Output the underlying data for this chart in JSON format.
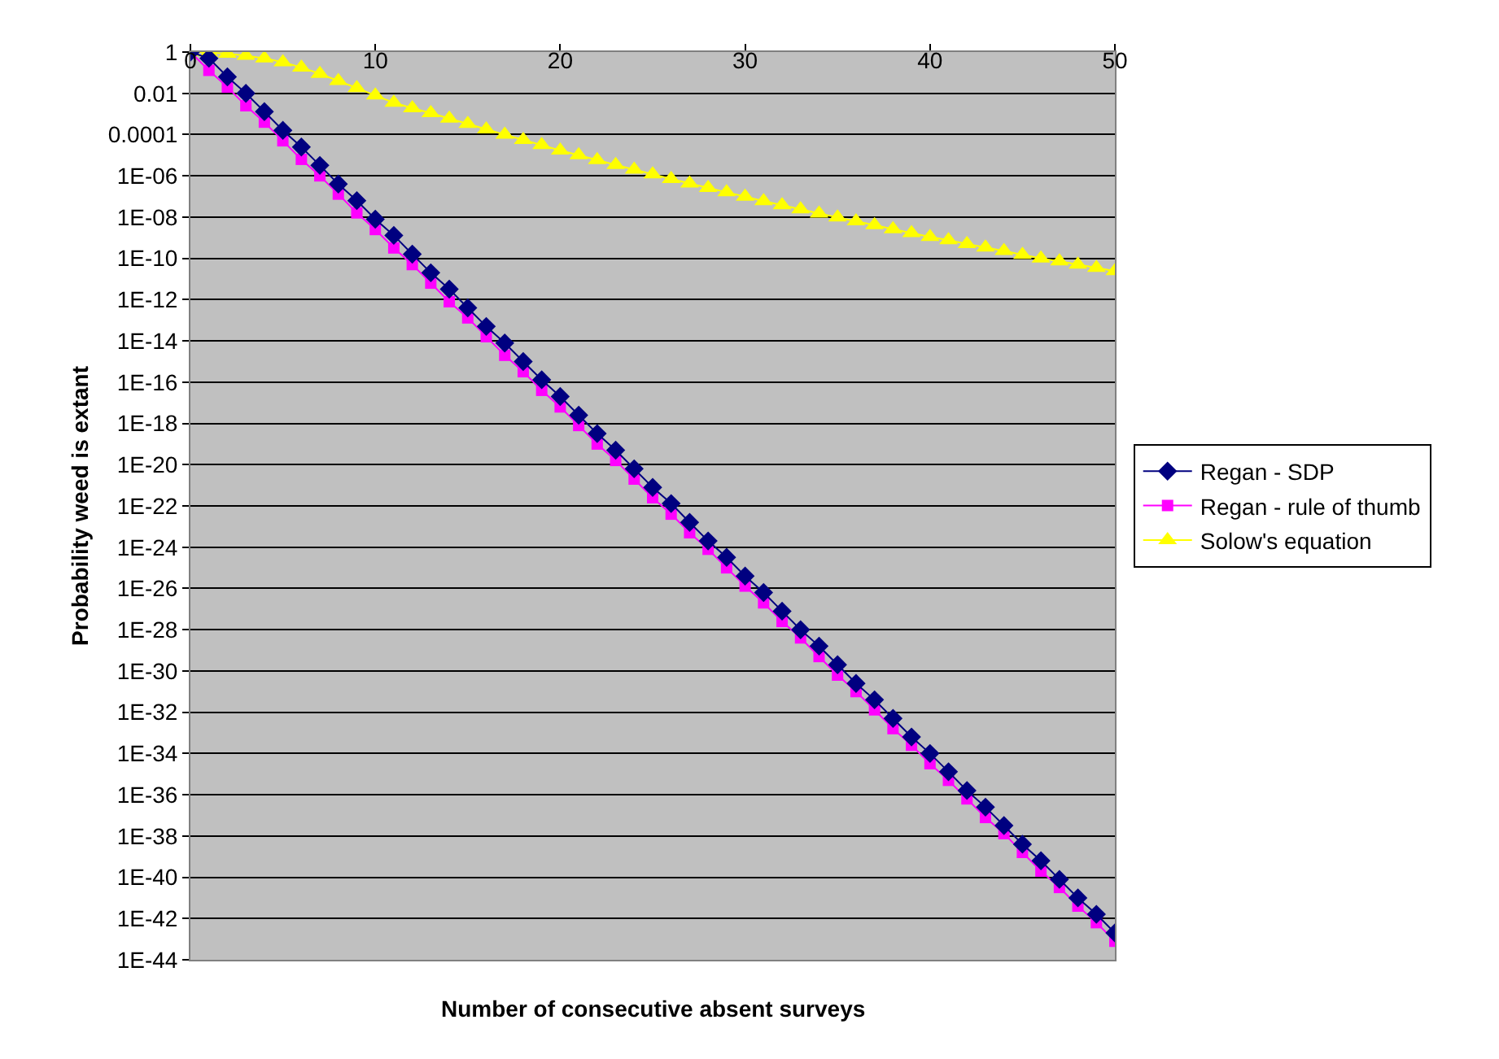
{
  "chart_data": {
    "type": "line",
    "xlabel": "Number of consecutive absent surveys",
    "ylabel": "Probability weed is extant",
    "x": [
      0,
      1,
      2,
      3,
      4,
      5,
      6,
      7,
      8,
      9,
      10,
      11,
      12,
      13,
      14,
      15,
      16,
      17,
      18,
      19,
      20,
      21,
      22,
      23,
      24,
      25,
      26,
      27,
      28,
      29,
      30,
      31,
      32,
      33,
      34,
      35,
      36,
      37,
      38,
      39,
      40,
      41,
      42,
      43,
      44,
      45,
      46,
      47,
      48,
      49,
      50
    ],
    "series": [
      {
        "name": "Regan - SDP",
        "color": "#000080",
        "marker": "diamond",
        "values": [
          1,
          0.5,
          0.063,
          0.01,
          0.0013,
          0.00016,
          2.5e-05,
          3.2e-06,
          4e-07,
          6.3e-08,
          7.9e-09,
          1.3e-09,
          1.6e-10,
          2e-11,
          3.2e-12,
          4e-13,
          5e-14,
          7.9e-15,
          1e-15,
          1.3e-16,
          2e-17,
          2.5e-18,
          3.2e-19,
          5e-20,
          6.3e-21,
          7.9e-22,
          1.3e-22,
          1.6e-23,
          2e-24,
          3.2e-25,
          4e-26,
          6.3e-27,
          7.9e-28,
          1e-28,
          1.6e-29,
          2e-30,
          2.5e-31,
          4e-32,
          5e-33,
          6.3e-34,
          1e-34,
          1.3e-35,
          1.6e-36,
          2.5e-37,
          3.2e-38,
          4e-39,
          6.3e-40,
          7.9e-41,
          1e-41,
          1.6e-42,
          2e-43
        ]
      },
      {
        "name": "Regan - rule of thumb",
        "color": "#ff00ff",
        "marker": "square",
        "values": [
          1,
          0.13,
          0.02,
          0.0025,
          0.0004,
          5e-05,
          6.3e-06,
          1e-06,
          1.3e-07,
          1.6e-08,
          2.5e-09,
          3.2e-10,
          5e-11,
          6.3e-12,
          7.9e-13,
          1.3e-13,
          1.6e-14,
          2e-15,
          3.2e-16,
          4e-17,
          6.3e-18,
          7.9e-19,
          1e-19,
          1.6e-20,
          2e-21,
          2.5e-22,
          4e-23,
          5e-24,
          7.9e-25,
          1e-25,
          1.3e-26,
          2e-27,
          2.5e-28,
          4e-29,
          5e-30,
          6.3e-31,
          1e-31,
          1.3e-32,
          1.6e-33,
          2.5e-34,
          3.2e-35,
          5e-36,
          6.3e-37,
          7.9e-38,
          1.3e-38,
          1.6e-39,
          2e-40,
          3.2e-41,
          4e-42,
          6.3e-43,
          7.9e-44
        ]
      },
      {
        "name": "Solow's equation",
        "color": "#ffff00",
        "marker": "triangle",
        "values": [
          1,
          0.95,
          0.83,
          0.66,
          0.5,
          0.32,
          0.18,
          0.089,
          0.04,
          0.018,
          0.0079,
          0.0035,
          0.0019,
          0.0011,
          0.0006,
          0.00033,
          0.00018,
          0.0001,
          5.5e-05,
          3.1e-05,
          1.7e-05,
          1e-05,
          5.8e-06,
          3.4e-06,
          2e-06,
          1.2e-06,
          7.1e-07,
          4.3e-07,
          2.6e-07,
          1.6e-07,
          9.8e-08,
          6e-08,
          3.8e-08,
          2.4e-08,
          1.5e-08,
          9.8e-09,
          6.3e-09,
          4.1e-09,
          2.6e-09,
          1.7e-09,
          1.1e-09,
          7.6e-10,
          5e-10,
          3.4e-10,
          2.3e-10,
          1.5e-10,
          1e-10,
          7.2e-11,
          5e-11,
          3.5e-11,
          2.4e-11
        ]
      }
    ],
    "log": "y",
    "xlim": [
      0,
      50
    ],
    "xticks": [
      0,
      10,
      20,
      30,
      40,
      50
    ],
    "ylim": [
      1e-44,
      1
    ],
    "yticks": [
      1,
      0.01,
      0.0001,
      {
        "value": 1e-06,
        "label": "1E-06"
      },
      {
        "value": 1e-08,
        "label": "1E-08"
      },
      {
        "value": 1e-10,
        "label": "1E-10"
      },
      {
        "value": 1e-12,
        "label": "1E-12"
      },
      {
        "value": 1e-14,
        "label": "1E-14"
      },
      {
        "value": 1e-16,
        "label": "1E-16"
      },
      {
        "value": 1e-18,
        "label": "1E-18"
      },
      {
        "value": 1e-20,
        "label": "1E-20"
      },
      {
        "value": 1e-22,
        "label": "1E-22"
      },
      {
        "value": 1e-24,
        "label": "1E-24"
      },
      {
        "value": 1e-26,
        "label": "1E-26"
      },
      {
        "value": 1e-28,
        "label": "1E-28"
      },
      {
        "value": 1e-30,
        "label": "1E-30"
      },
      {
        "value": 1e-32,
        "label": "1E-32"
      },
      {
        "value": 1e-34,
        "label": "1E-34"
      },
      {
        "value": 1e-36,
        "label": "1E-36"
      },
      {
        "value": 1e-38,
        "label": "1E-38"
      },
      {
        "value": 1e-40,
        "label": "1E-40"
      },
      {
        "value": 1e-42,
        "label": "1E-42"
      },
      {
        "value": 1e-44,
        "label": "1E-44"
      }
    ],
    "grid": "y",
    "legend": "right",
    "line_style": "solid"
  }
}
